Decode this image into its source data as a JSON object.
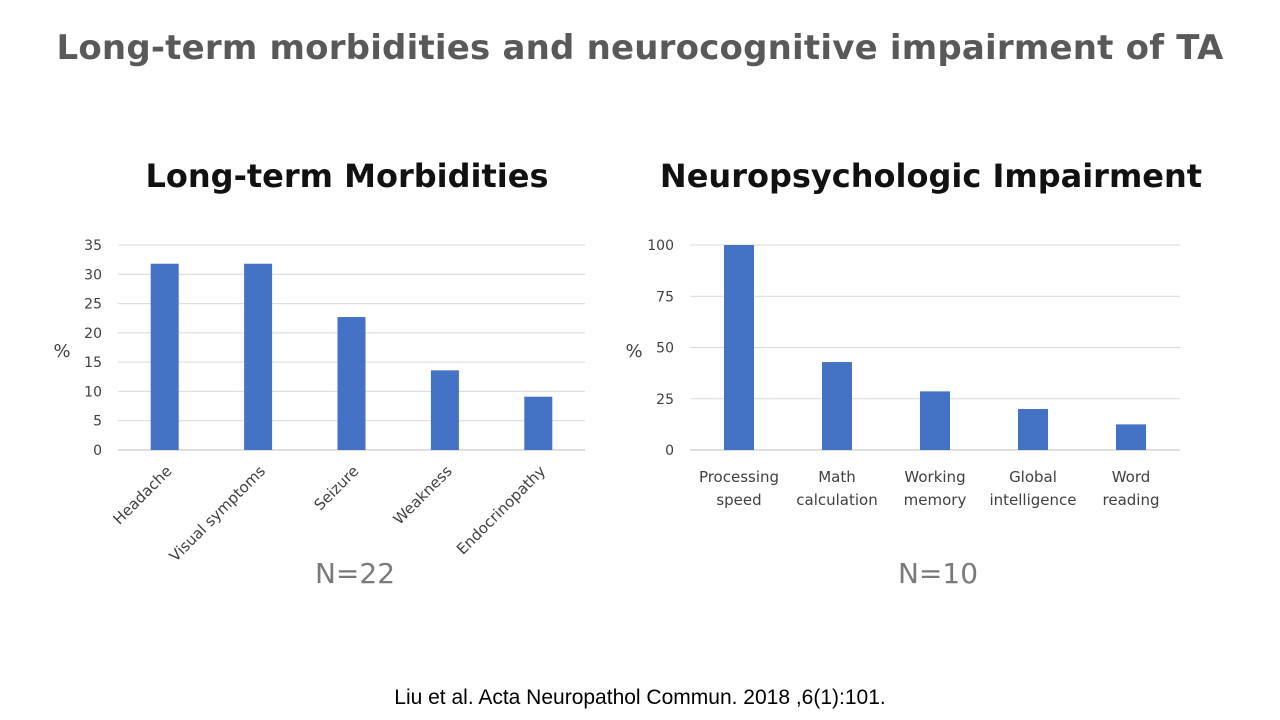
{
  "slide": {
    "title": "Long-term morbidities and neurocognitive impairment of TA",
    "citation": "Liu et al. Acta Neuropathol Commun. 2018 ,6(1):101."
  },
  "colors": {
    "bar": "#4472c4",
    "grid": "#d9d9d9",
    "text": "#404040"
  },
  "chart_data": [
    {
      "type": "bar",
      "title": "Long-term Morbidities",
      "ylabel": "%",
      "categories": [
        "Headache",
        "Visual symptoms",
        "Seizure",
        "Weakness",
        "Endocrinopathy"
      ],
      "values": [
        31.8,
        31.8,
        22.7,
        13.6,
        9.1
      ],
      "ylim": [
        0,
        35
      ],
      "yticks": [
        0,
        5,
        10,
        15,
        20,
        25,
        30,
        35
      ],
      "grid": true,
      "note": "N=22"
    },
    {
      "type": "bar",
      "title": "Neuropsychologic Impairment",
      "ylabel": "%",
      "categories": [
        "Processing speed",
        "Math calculation",
        "Working memory",
        "Global intelligence",
        "Word reading"
      ],
      "values": [
        100,
        42.9,
        28.6,
        20,
        12.5
      ],
      "ylim": [
        0,
        100
      ],
      "yticks": [
        0,
        25,
        50,
        75,
        100
      ],
      "grid": true,
      "note": "N=10"
    }
  ]
}
